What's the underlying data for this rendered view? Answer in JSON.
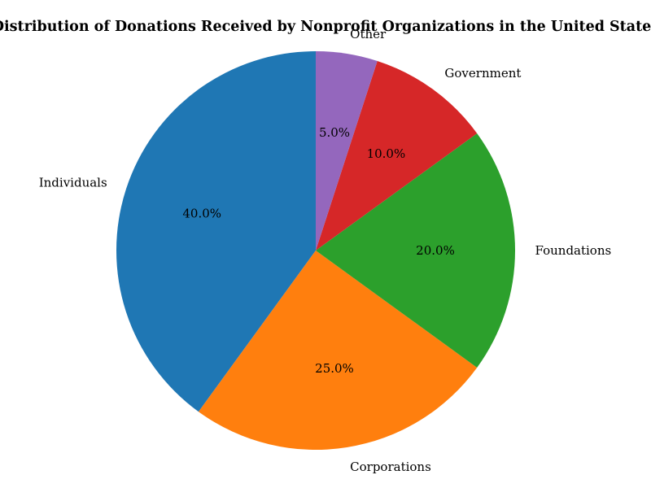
{
  "chart_data": {
    "type": "pie",
    "title": "Distribution of Donations Received by Nonprofit Organizations in the United States",
    "start_angle_deg": 90,
    "direction": "counterclockwise",
    "slices": [
      {
        "label": "Individuals",
        "value": 40,
        "pct_text": "40.0%",
        "color": "#1f77b4"
      },
      {
        "label": "Corporations",
        "value": 25,
        "pct_text": "25.0%",
        "color": "#ff7f0e"
      },
      {
        "label": "Foundations",
        "value": 20,
        "pct_text": "20.0%",
        "color": "#2ca02c"
      },
      {
        "label": "Government",
        "value": 10,
        "pct_text": "10.0%",
        "color": "#d62728"
      },
      {
        "label": "Other",
        "value": 5,
        "pct_text": "5.0%",
        "color": "#9467bd"
      }
    ]
  }
}
